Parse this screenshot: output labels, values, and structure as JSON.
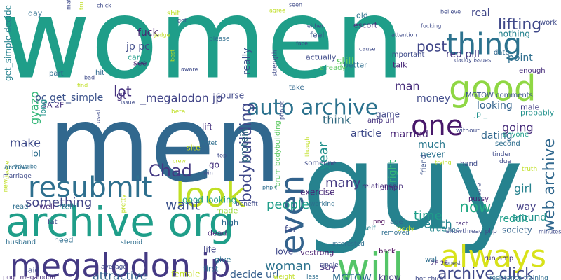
{
  "words": [
    {
      "text": "women",
      "color": "#1f9e89"
    },
    {
      "text": "men",
      "color": "#31688e"
    },
    {
      "text": "guy",
      "color": "#26828e"
    },
    {
      "text": "good",
      "color": "#8fd744"
    },
    {
      "text": "archive org",
      "color": "#1f9e89"
    },
    {
      "text": "megalodon jp",
      "color": "#443983"
    },
    {
      "text": "thing",
      "color": "#2c728e"
    },
    {
      "text": "will",
      "color": "#54c568"
    },
    {
      "text": "always",
      "color": "#d8e219"
    },
    {
      "text": "look",
      "color": "#c0df25"
    },
    {
      "text": "resubmit",
      "color": "#2e6f8e"
    },
    {
      "text": "one",
      "color": "#48186a"
    },
    {
      "text": "even",
      "color": "#33638d"
    },
    {
      "text": "auto archive",
      "color": "#2c728e"
    },
    {
      "text": "lifting",
      "color": "#3f4889"
    },
    {
      "text": "archive click",
      "color": "#3f4889"
    },
    {
      "text": "web archive",
      "color": "#31688e"
    },
    {
      "text": "bodybuilding",
      "color": "#3f4889"
    },
    {
      "text": "Chad",
      "color": "#443983"
    },
    {
      "text": "post",
      "color": "#404688"
    },
    {
      "text": "lot",
      "color": "#46327e"
    },
    {
      "text": "people",
      "color": "#1f9e89"
    },
    {
      "text": "woman",
      "color": "#2c728e"
    },
    {
      "text": "want",
      "color": "#3b528b"
    },
    {
      "text": "now",
      "color": "#22a884"
    },
    {
      "text": "something",
      "color": "#414487"
    },
    {
      "text": "many",
      "color": "#443983"
    },
    {
      "text": "make",
      "color": "#3e4a89"
    },
    {
      "text": "time",
      "color": "#1f9e89"
    },
    {
      "text": "year",
      "color": "#21918c"
    },
    {
      "text": "attractive",
      "color": "#33638d"
    },
    {
      "text": "going",
      "color": "#472d7b"
    },
    {
      "text": "think",
      "color": "#30697f"
    },
    {
      "text": "man",
      "color": "#472d7b"
    },
    {
      "text": "health",
      "color": "#25848e"
    },
    {
      "text": "gyazo",
      "color": "#35b779"
    },
    {
      "text": "pc get_simple",
      "color": "#3b528b"
    },
    {
      "text": "_megalodon jp",
      "color": "#414487"
    },
    {
      "text": "fuck",
      "color": "#481f70"
    },
    {
      "text": "jp pc",
      "color": "#3e4a89"
    },
    {
      "text": "red pill",
      "color": "#443983"
    },
    {
      "text": "girl",
      "color": "#26828e"
    },
    {
      "text": "dating",
      "color": "#31688e"
    },
    {
      "text": "real",
      "color": "#404688"
    },
    {
      "text": "married",
      "color": "#482475"
    },
    {
      "text": "article",
      "color": "#3e4989"
    },
    {
      "text": "say",
      "color": "#46337f"
    },
    {
      "text": "MGTOW",
      "color": "#2e6e8e"
    },
    {
      "text": "still",
      "color": "#5ec962"
    },
    {
      "text": "really",
      "color": "#3b528b"
    },
    {
      "text": "gt",
      "color": "#46327e"
    },
    {
      "text": "protein",
      "color": "#30697f"
    },
    {
      "text": "get_simple decide",
      "color": "#26828e"
    },
    {
      "text": "decide url",
      "color": "#355f8d"
    },
    {
      "text": "much",
      "color": "#2a788e"
    },
    {
      "text": "point",
      "color": "#2e6e8e"
    },
    {
      "text": "looking",
      "color": "#33638d"
    },
    {
      "text": "way",
      "color": "#433e85"
    },
    {
      "text": "reddit",
      "color": "#1f9e89"
    },
    {
      "text": "money",
      "color": "#3e4989"
    },
    {
      "text": "right",
      "color": "#35b779"
    },
    {
      "text": "exercise",
      "color": "#482878"
    },
    {
      "text": "game",
      "color": "#404688"
    },
    {
      "text": "lift",
      "color": "#46327e"
    },
    {
      "text": "nothing",
      "color": "#26828e"
    },
    {
      "text": "never",
      "color": "#2c728e"
    },
    {
      "text": "around",
      "color": "#21918c"
    },
    {
      "text": "true",
      "color": "#23888e"
    },
    {
      "text": "society",
      "color": "#33638d"
    },
    {
      "text": "life",
      "color": "#414487"
    },
    {
      "text": "good looking",
      "color": "#1f9e89"
    },
    {
      "text": "course",
      "color": "#3f4889"
    },
    {
      "text": "lol",
      "color": "#2e6e8e"
    },
    {
      "text": "far",
      "color": "#3e4a89"
    },
    {
      "text": "know",
      "color": "#443983"
    },
    {
      "text": "female",
      "color": "#c2df23"
    },
    {
      "text": "livestrong",
      "color": "#481f70"
    },
    {
      "text": "love",
      "color": "#3f4889"
    },
    {
      "text": "go",
      "color": "#46327e"
    },
    {
      "text": "need",
      "color": "#2e6e8e"
    },
    {
      "text": "said",
      "color": "#3e4989"
    },
    {
      "text": "well",
      "color": "#472d7b"
    },
    {
      "text": "tell",
      "color": "#26828e"
    },
    {
      "text": "high",
      "color": "#31688e"
    },
    {
      "text": "made",
      "color": "#9fda3a"
    },
    {
      "text": "first",
      "color": "#2e6e8e"
    },
    {
      "text": "give",
      "color": "#2c728e"
    },
    {
      "text": "dead",
      "color": "#482878"
    },
    {
      "text": "MGTOW comments",
      "color": "#3b528b"
    },
    {
      "text": "male",
      "color": "#433e85"
    },
    {
      "text": "probably",
      "color": "#21918c"
    },
    {
      "text": "work",
      "color": "#3e4a89"
    },
    {
      "text": "enough",
      "color": "#472d7b"
    },
    {
      "text": "anyone",
      "color": "#1f9e89"
    },
    {
      "text": "site",
      "color": "#c8e020"
    },
    {
      "text": "see",
      "color": "#481f70"
    },
    {
      "text": "care",
      "color": "#1f9e89"
    },
    {
      "text": "talk",
      "color": "#482878"
    },
    {
      "text": "better",
      "color": "#2e6e8e"
    },
    {
      "text": "actually",
      "color": "#3e4a89"
    },
    {
      "text": "already",
      "color": "#5ec962"
    },
    {
      "text": "feel",
      "color": "#3b528b"
    },
    {
      "text": "jp _",
      "color": "#21918c"
    },
    {
      "text": "day",
      "color": "#2e6e8e"
    },
    {
      "text": "old",
      "color": "#2c728e"
    },
    {
      "text": "escort",
      "color": "#472d7b"
    },
    {
      "text": "important",
      "color": "#3e4a89"
    },
    {
      "text": "date",
      "color": "#31688e"
    },
    {
      "text": "amp url",
      "color": "#46327e"
    },
    {
      "text": "3A 2F",
      "color": "#46327e"
    },
    {
      "text": "long",
      "color": "#21918c"
    },
    {
      "text": "hit",
      "color": "#31688e"
    },
    {
      "text": "part",
      "color": "#2e6e8e"
    },
    {
      "text": "take",
      "color": "#31688e"
    },
    {
      "text": "shit",
      "color": "#bddf26"
    },
    {
      "text": "run amp",
      "color": "#46327e"
    },
    {
      "text": "wall",
      "color": "#2e6e8e"
    },
    {
      "text": "back",
      "color": "#440154"
    },
    {
      "text": "age",
      "color": "#31688e"
    },
    {
      "text": "body",
      "color": "#c8e020"
    },
    {
      "text": "self",
      "color": "#26828e"
    },
    {
      "text": "relationship",
      "color": "#472d7b"
    },
    {
      "text": "someone",
      "color": "#3e4a89"
    },
    {
      "text": "pimp",
      "color": "#482878"
    },
    {
      "text": "friend",
      "color": "#3b528b"
    },
    {
      "text": "hand",
      "color": "#3e4a89"
    },
    {
      "text": "second",
      "color": "#2e6e8e"
    },
    {
      "text": "without",
      "color": "#3e4a89"
    },
    {
      "text": "tinder",
      "color": "#3e4a89"
    },
    {
      "text": "due",
      "color": "#3e4a89"
    },
    {
      "text": "pussy",
      "color": "#481f70"
    },
    {
      "text": "truth",
      "color": "#c0df25"
    },
    {
      "text": "fact",
      "color": "#472d7b"
    },
    {
      "text": "shoe",
      "color": "#2e6e8e"
    },
    {
      "text": "minutes",
      "color": "#3e4a89"
    },
    {
      "text": "showthread php",
      "color": "#3e4a89"
    },
    {
      "text": "resistance training",
      "color": "#2e6e8e"
    },
    {
      "text": "hot chick",
      "color": "#3e4a89"
    },
    {
      "text": "honest",
      "color": "#3e4a89"
    },
    {
      "text": "2F 2F",
      "color": "#472d7b"
    },
    {
      "text": "removed",
      "color": "#2e6e8e"
    },
    {
      "text": "png",
      "color": "#440154"
    },
    {
      "text": "interested",
      "color": "#2e6e8e"
    },
    {
      "text": "single",
      "color": "#3e4a89"
    },
    {
      "text": "less",
      "color": "#2e6e8e"
    },
    {
      "text": "weight",
      "color": "#c0df25"
    },
    {
      "text": "png _megalodon",
      "color": "#472d7b"
    },
    {
      "text": "husband",
      "color": "#2e6e8e"
    },
    {
      "text": "average",
      "color": "#3e4a89"
    },
    {
      "text": "fat",
      "color": "#3e4a89"
    },
    {
      "text": "steroid",
      "color": "#2e6e8e"
    },
    {
      "text": "forum bodybuilding",
      "color": "#5ec962"
    },
    {
      "text": "working",
      "color": "#2e6e8e"
    },
    {
      "text": "benefit",
      "color": "#3e4a89"
    },
    {
      "text": "almost",
      "color": "#2e6e8e"
    },
    {
      "text": "read",
      "color": "#2e6e8e"
    },
    {
      "text": "new",
      "color": "#c0df25"
    },
    {
      "text": "device",
      "color": "#c0df25"
    },
    {
      "text": "marriage",
      "color": "#3e4a89"
    },
    {
      "text": "youtube",
      "color": "#2e6e8e"
    },
    {
      "text": "archive",
      "color": "#2e6e8e"
    },
    {
      "text": "hot",
      "color": "#2e6e8e"
    },
    {
      "text": "let",
      "color": "#2e6e8e"
    },
    {
      "text": "top",
      "color": "#3e4a89"
    },
    {
      "text": "crew",
      "color": "#c0df25"
    },
    {
      "text": "win",
      "color": "#3e4a89"
    },
    {
      "text": "beta",
      "color": "#c0df25"
    },
    {
      "text": "used",
      "color": "#3e4a89"
    },
    {
      "text": "issue",
      "color": "#3e4a89"
    },
    {
      "text": "pretty",
      "color": "#c0df25"
    },
    {
      "text": "php t",
      "color": "#2e6e8e"
    },
    {
      "text": "though",
      "color": "#c0df25"
    },
    {
      "text": "trying",
      "color": "#c0df25"
    },
    {
      "text": "sure",
      "color": "#3e4a89"
    },
    {
      "text": "cause",
      "color": "#3e4a89"
    },
    {
      "text": "either",
      "color": "#3e4a89"
    },
    {
      "text": "face",
      "color": "#3e4a89"
    },
    {
      "text": "please",
      "color": "#2e6e8e"
    },
    {
      "text": "agree",
      "color": "#c0df25"
    },
    {
      "text": "seen",
      "color": "#3e4a89"
    },
    {
      "text": "fucking",
      "color": "#3e4a89"
    },
    {
      "text": "attention",
      "color": "#3e4a89"
    },
    {
      "text": "believe",
      "color": "#3e4a89"
    },
    {
      "text": "daddy issues",
      "color": "#3e4a89"
    },
    {
      "text": "strength",
      "color": "#3e4a89"
    },
    {
      "text": "aware",
      "color": "#3e4a89"
    },
    {
      "text": "bad",
      "color": "#3e4a89"
    },
    {
      "text": "find",
      "color": "#c0df25"
    },
    {
      "text": "best",
      "color": "#c0df25"
    },
    {
      "text": "judge",
      "color": "#c0df25"
    },
    {
      "text": "got",
      "color": "#3e4a89"
    },
    {
      "text": "matter",
      "color": "#3e4a89"
    },
    {
      "text": "truly",
      "color": "#c0df25"
    },
    {
      "text": "chick",
      "color": "#3e4a89"
    },
    {
      "text": "php pc",
      "color": "#3e4a89"
    }
  ]
}
